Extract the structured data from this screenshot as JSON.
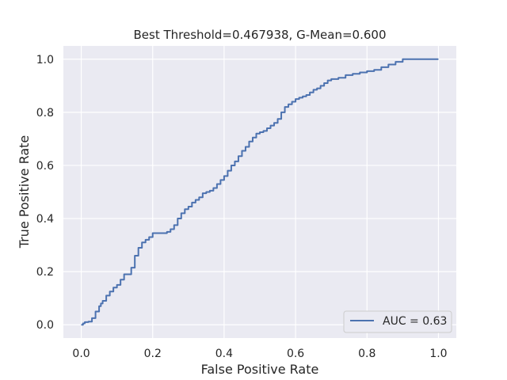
{
  "chart_data": {
    "type": "line",
    "title": "Best Threshold=0.467938, G-Mean=0.600",
    "xlabel": "False Positive Rate",
    "ylabel": "True Positive Rate",
    "xlim": [
      -0.05,
      1.05
    ],
    "ylim": [
      -0.05,
      1.05
    ],
    "x_ticks": [
      "0.0",
      "0.2",
      "0.4",
      "0.6",
      "0.8",
      "1.0"
    ],
    "y_ticks": [
      "0.0",
      "0.2",
      "0.4",
      "0.6",
      "0.8",
      "1.0"
    ],
    "grid": true,
    "legend_position": "lower-right",
    "colors": {
      "line": "#4c72b0",
      "background": "#eaeaf2",
      "grid": "#ffffff"
    },
    "series": [
      {
        "name": "AUC = 0.63",
        "x": [
          0.0,
          0.005,
          0.01,
          0.02,
          0.03,
          0.04,
          0.05,
          0.055,
          0.06,
          0.07,
          0.08,
          0.09,
          0.1,
          0.11,
          0.12,
          0.13,
          0.14,
          0.15,
          0.16,
          0.17,
          0.18,
          0.19,
          0.2,
          0.22,
          0.24,
          0.25,
          0.26,
          0.27,
          0.28,
          0.29,
          0.3,
          0.31,
          0.32,
          0.33,
          0.34,
          0.35,
          0.36,
          0.37,
          0.38,
          0.39,
          0.4,
          0.41,
          0.42,
          0.43,
          0.44,
          0.45,
          0.46,
          0.47,
          0.48,
          0.49,
          0.5,
          0.51,
          0.52,
          0.53,
          0.54,
          0.55,
          0.56,
          0.57,
          0.58,
          0.59,
          0.6,
          0.61,
          0.62,
          0.63,
          0.64,
          0.65,
          0.66,
          0.67,
          0.68,
          0.69,
          0.7,
          0.72,
          0.74,
          0.76,
          0.78,
          0.8,
          0.82,
          0.84,
          0.86,
          0.88,
          0.9,
          0.95,
          1.0
        ],
        "y": [
          0.0,
          0.005,
          0.01,
          0.012,
          0.025,
          0.05,
          0.07,
          0.08,
          0.09,
          0.11,
          0.125,
          0.14,
          0.15,
          0.17,
          0.19,
          0.19,
          0.215,
          0.26,
          0.29,
          0.31,
          0.32,
          0.33,
          0.345,
          0.345,
          0.35,
          0.36,
          0.375,
          0.4,
          0.42,
          0.435,
          0.445,
          0.46,
          0.47,
          0.48,
          0.495,
          0.5,
          0.505,
          0.515,
          0.53,
          0.545,
          0.56,
          0.58,
          0.6,
          0.615,
          0.635,
          0.655,
          0.67,
          0.69,
          0.705,
          0.72,
          0.725,
          0.73,
          0.74,
          0.75,
          0.76,
          0.775,
          0.8,
          0.82,
          0.83,
          0.84,
          0.85,
          0.855,
          0.86,
          0.865,
          0.875,
          0.885,
          0.89,
          0.9,
          0.91,
          0.92,
          0.925,
          0.93,
          0.94,
          0.945,
          0.95,
          0.955,
          0.96,
          0.97,
          0.98,
          0.99,
          1.0,
          1.0,
          1.0
        ]
      }
    ]
  }
}
